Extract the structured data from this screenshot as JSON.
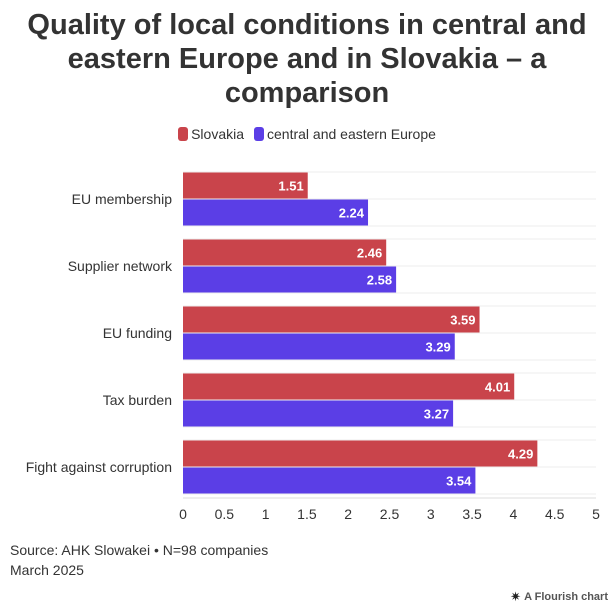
{
  "title": "Quality of local conditions in central and eastern Europe and in Slovakia – a comparison",
  "legend": [
    {
      "label": "Slovakia",
      "color": "#c9444b"
    },
    {
      "label": "central and eastern Europe",
      "color": "#5b3ee6"
    }
  ],
  "footer": {
    "source": "Source: AHK Slowakei • N=98 companies",
    "date": "March 2025",
    "credit": "A Flourish chart",
    "credit_icon": "flourish-star-icon"
  },
  "chart_data": {
    "type": "bar",
    "orientation": "horizontal",
    "categories": [
      "EU membership",
      "Supplier network",
      "EU funding",
      "Tax burden",
      "Fight against corruption"
    ],
    "series": [
      {
        "name": "Slovakia",
        "color": "#c9444b",
        "values": [
          1.51,
          2.46,
          3.59,
          4.01,
          4.29
        ]
      },
      {
        "name": "central and eastern Europe",
        "color": "#5b3ee6",
        "values": [
          2.24,
          2.58,
          3.29,
          3.27,
          3.54
        ]
      }
    ],
    "xlim": [
      0,
      5
    ],
    "xticks": [
      "0",
      "0.5",
      "1",
      "1.5",
      "2",
      "2.5",
      "3",
      "3.5",
      "4",
      "4.5",
      "5"
    ],
    "data_labels": true,
    "grid": true,
    "legend_position": "top-center"
  }
}
